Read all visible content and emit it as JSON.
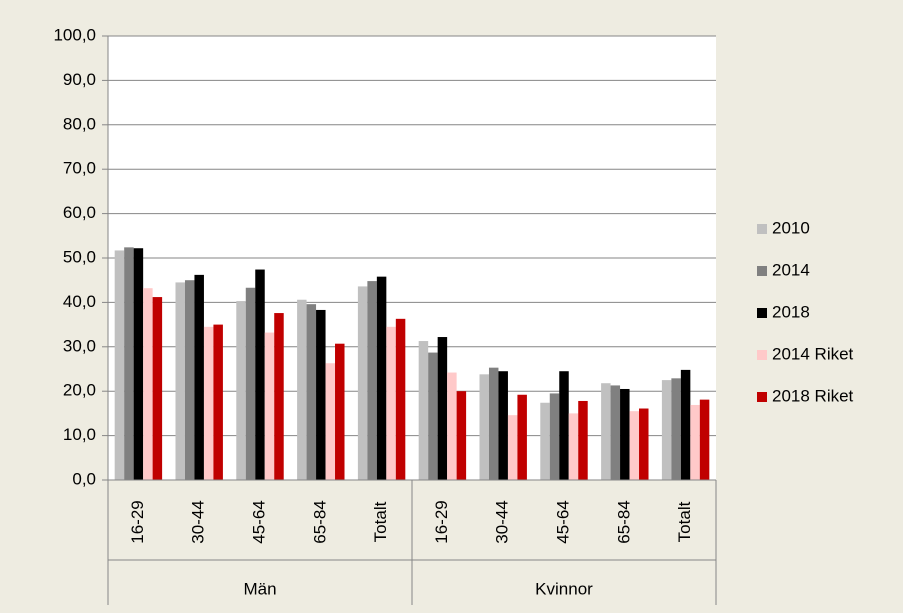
{
  "chart_data": {
    "type": "bar",
    "categories": [
      "16-29",
      "30-44",
      "45-64",
      "65-84",
      "Totalt",
      "16-29",
      "30-44",
      "45-64",
      "65-84",
      "Totalt"
    ],
    "groups": [
      "Män",
      "Kvinnor"
    ],
    "series": [
      {
        "name": "2010",
        "color": "#c0c0c0",
        "values": [
          51.7,
          44.5,
          40.3,
          40.6,
          43.6,
          31.3,
          23.8,
          17.4,
          21.8,
          22.5
        ]
      },
      {
        "name": "2014",
        "color": "#808080",
        "values": [
          52.4,
          45.0,
          43.3,
          39.6,
          44.8,
          28.7,
          25.3,
          19.5,
          21.3,
          22.9
        ]
      },
      {
        "name": "2018",
        "color": "#000000",
        "values": [
          52.2,
          46.2,
          47.4,
          38.3,
          45.8,
          32.2,
          24.5,
          24.5,
          20.5,
          24.8
        ]
      },
      {
        "name": "2014 Riket",
        "color": "#ffc9c9",
        "values": [
          43.2,
          34.5,
          33.2,
          26.3,
          34.5,
          24.2,
          14.6,
          15.0,
          15.5,
          16.9
        ]
      },
      {
        "name": "2018 Riket",
        "color": "#c00000",
        "values": [
          41.2,
          35.0,
          37.6,
          30.7,
          36.3,
          20.0,
          19.2,
          17.8,
          16.1,
          18.1
        ]
      }
    ],
    "ylim": [
      0,
      100
    ],
    "yticks": [
      {
        "value": 0,
        "label": "0,0"
      },
      {
        "value": 10,
        "label": "10,0"
      },
      {
        "value": 20,
        "label": "20,0"
      },
      {
        "value": 30,
        "label": "30,0"
      },
      {
        "value": 40,
        "label": "40,0"
      },
      {
        "value": 50,
        "label": "50,0"
      },
      {
        "value": 60,
        "label": "60,0"
      },
      {
        "value": 70,
        "label": "70,0"
      },
      {
        "value": 80,
        "label": "80,0"
      },
      {
        "value": 90,
        "label": "90,0"
      },
      {
        "value": 100,
        "label": "100,0"
      }
    ],
    "grid": true,
    "legend": "right"
  }
}
